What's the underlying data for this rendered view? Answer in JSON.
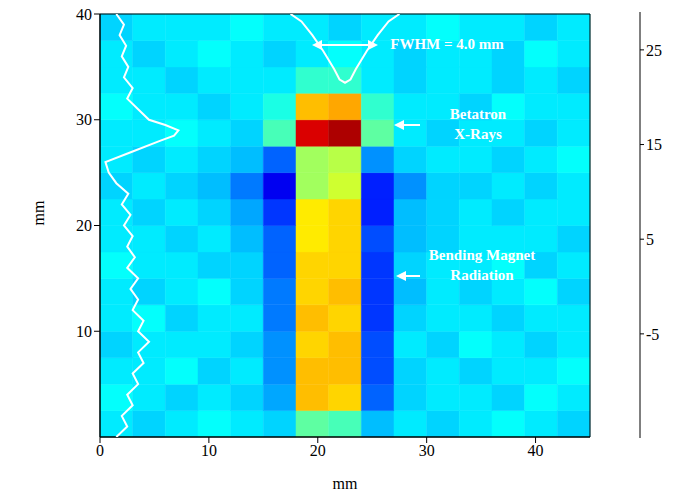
{
  "chart_data": {
    "type": "heatmap",
    "xlabel": "mm",
    "ylabel": "mm",
    "xlim": [
      0,
      45
    ],
    "ylim": [
      0,
      40
    ],
    "xticks": [
      0,
      10,
      20,
      30,
      40
    ],
    "yticks": [
      10,
      20,
      30,
      40
    ],
    "heatmap": {
      "x_edges": [
        0,
        3,
        6,
        9,
        12,
        15,
        18,
        21,
        24,
        27,
        30,
        33,
        36,
        39,
        42,
        45
      ],
      "y_edges": [
        0,
        2.5,
        5,
        7.5,
        10,
        12.5,
        15,
        17.5,
        20,
        22.5,
        25,
        27.5,
        30,
        32.5,
        35,
        37.5,
        40
      ],
      "cells": [
        [
          0,
          -1,
          0,
          1,
          0,
          -1,
          5,
          4,
          -2,
          0,
          -1,
          0,
          1,
          0,
          -1
        ],
        [
          1,
          0,
          -1,
          0,
          -1,
          -3,
          15,
          14,
          -6,
          -1,
          0,
          0,
          -1,
          1,
          0
        ],
        [
          0,
          0,
          1,
          -1,
          0,
          -4,
          15,
          15,
          -7,
          -1,
          0,
          -1,
          0,
          0,
          1
        ],
        [
          -1,
          0,
          0,
          0,
          -1,
          -4,
          14,
          15,
          -7,
          0,
          -1,
          1,
          0,
          -1,
          0
        ],
        [
          0,
          1,
          -1,
          0,
          0,
          -5,
          15,
          14,
          -8,
          -1,
          0,
          0,
          -1,
          0,
          0
        ],
        [
          0,
          -1,
          0,
          1,
          -1,
          -5,
          14,
          15,
          -8,
          -2,
          0,
          -1,
          0,
          1,
          -1
        ],
        [
          1,
          0,
          0,
          -1,
          -1,
          -6,
          14,
          14,
          -8,
          -1,
          0,
          0,
          1,
          -1,
          0
        ],
        [
          0,
          0,
          -1,
          0,
          -2,
          -6,
          13,
          14,
          -7,
          -2,
          -1,
          0,
          0,
          0,
          -1
        ],
        [
          0,
          -1,
          0,
          -1,
          -3,
          -8,
          13,
          14,
          -9,
          -2,
          -1,
          0,
          -1,
          0,
          0
        ],
        [
          -1,
          0,
          -1,
          -2,
          -5,
          -11,
          8,
          10,
          -9,
          -4,
          -1,
          -1,
          0,
          -1,
          0
        ],
        [
          0,
          -1,
          0,
          -1,
          -2,
          -6,
          8,
          9,
          -4,
          -1,
          0,
          0,
          -1,
          0,
          1
        ],
        [
          0,
          0,
          1,
          0,
          -1,
          4,
          25,
          27,
          5,
          0,
          -1,
          0,
          0,
          -1,
          0
        ],
        [
          1,
          0,
          0,
          -1,
          0,
          2,
          15,
          16,
          3,
          0,
          0,
          -1,
          1,
          0,
          0
        ],
        [
          0,
          0,
          -1,
          0,
          0,
          0,
          3,
          3,
          0,
          -1,
          0,
          0,
          -1,
          0,
          -1
        ],
        [
          0,
          -1,
          0,
          1,
          0,
          -1,
          0,
          1,
          0,
          -1,
          0,
          0,
          -1,
          1,
          0
        ],
        [
          -1,
          0,
          0,
          0,
          1,
          0,
          0,
          -1,
          0,
          0,
          1,
          0,
          0,
          -1,
          0
        ]
      ]
    },
    "colorbar": {
      "range": [
        -16,
        29
      ],
      "ticks": [
        -5,
        5,
        15,
        25
      ]
    },
    "lineouts": [
      {
        "color": "#ffffff",
        "x": [
          1.5,
          2.5,
          2,
          3,
          2.5,
          3.5,
          3,
          4,
          3.5,
          4.5,
          3.5,
          4,
          3,
          3.5,
          2.8,
          3.5,
          2.5,
          3.2,
          2.5,
          3,
          2.2,
          2.8,
          2,
          2.6,
          1.5,
          0.8,
          0.5,
          3,
          5.5,
          6.8,
          7.2,
          6,
          4.5,
          3.5,
          2.5,
          3,
          2.2,
          2.6,
          2,
          2.4,
          1.8,
          2.2,
          1.5
        ],
        "y": [
          0,
          1,
          2,
          3,
          4,
          5,
          6,
          7,
          8,
          9,
          10,
          11,
          12,
          13,
          14,
          15,
          16,
          17,
          18,
          19,
          20,
          21,
          22,
          23,
          24,
          25,
          26,
          27,
          28,
          28.5,
          29,
          29.5,
          30,
          31,
          32,
          33,
          34,
          35,
          36,
          37,
          38,
          39,
          40
        ]
      },
      {
        "color": "#ffffff",
        "x": [
          17.5,
          18.5,
          19.5,
          20.5,
          21.5,
          22,
          22.5,
          23,
          23.5,
          24.5,
          25.5,
          26.5,
          27.5
        ],
        "y": [
          40,
          39.3,
          38,
          36.5,
          34.8,
          33.8,
          33.5,
          33.8,
          34.8,
          36.5,
          38,
          39.3,
          40
        ]
      }
    ],
    "annotations": [
      {
        "lines": [
          "FWHM = 4.0 mm"
        ]
      },
      {
        "lines": [
          "Betatron",
          "X-Rays"
        ]
      },
      {
        "lines": [
          "Bending Magnet",
          "Radiation"
        ]
      }
    ]
  }
}
